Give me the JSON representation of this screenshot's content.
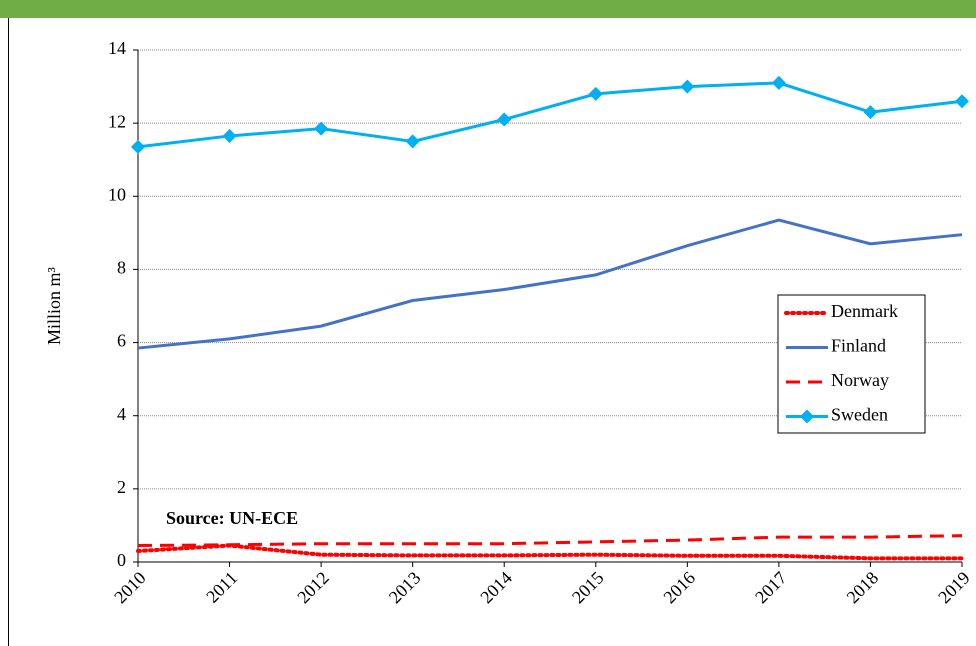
{
  "chart_data": {
    "type": "line",
    "y_label": "Million m³",
    "annotation": "Source: UN-ECE",
    "categories": [
      "2010",
      "2011",
      "2012",
      "2013",
      "2014",
      "2015",
      "2016",
      "2017",
      "2018",
      "2019"
    ],
    "series": [
      {
        "name": "Denmark",
        "color": "#ff0000",
        "linestyle": "dotted",
        "values": [
          0.3,
          0.45,
          0.2,
          0.18,
          0.18,
          0.2,
          0.17,
          0.17,
          0.1,
          0.1
        ]
      },
      {
        "name": "Finland",
        "color": "#4472c4",
        "linestyle": "solid",
        "values": [
          5.85,
          6.1,
          6.45,
          7.15,
          7.45,
          7.85,
          8.65,
          9.35,
          8.7,
          8.95
        ]
      },
      {
        "name": "Norway",
        "color": "#ff0000",
        "linestyle": "dashed",
        "values": [
          0.45,
          0.47,
          0.5,
          0.5,
          0.5,
          0.55,
          0.6,
          0.68,
          0.68,
          0.72
        ]
      },
      {
        "name": "Sweden",
        "color": "#00b0f0",
        "linestyle": "solid",
        "marker": "diamond",
        "values": [
          11.35,
          11.65,
          11.85,
          11.5,
          12.1,
          12.8,
          13.0,
          13.1,
          12.3,
          12.6
        ]
      }
    ],
    "ylim": [
      0,
      14
    ],
    "yticks": [
      0,
      2,
      4,
      6,
      8,
      10,
      12,
      14
    ],
    "grid": true
  }
}
